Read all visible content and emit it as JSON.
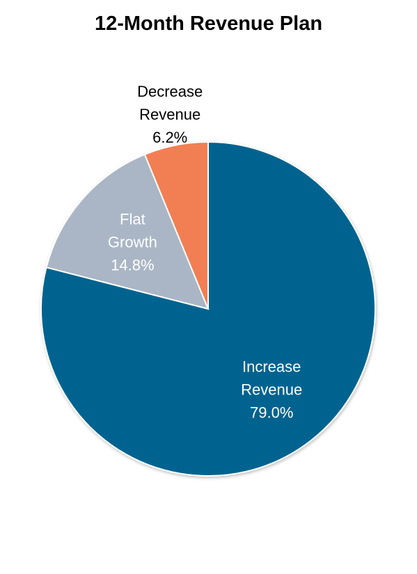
{
  "chart_data": {
    "type": "pie",
    "title": "12-Month Revenue Plan",
    "slices": [
      {
        "label": [
          "Increase",
          "Revenue"
        ],
        "value": 79.0,
        "value_label": "79.0%",
        "color": "#00648f",
        "label_color": "#ffffff"
      },
      {
        "label": [
          "Flat",
          "Growth"
        ],
        "value": 14.8,
        "value_label": "14.8%",
        "color": "#aab6c5",
        "label_color": "#ffffff"
      },
      {
        "label": [
          "Decrease",
          "Revenue"
        ],
        "value": 6.2,
        "value_label": "6.2%",
        "color": "#f27f52",
        "label_color": "#000000"
      }
    ],
    "start_angle": "12 o'clock",
    "direction": "clockwise",
    "legend": "none",
    "slice_border_color": "#ffffff"
  }
}
